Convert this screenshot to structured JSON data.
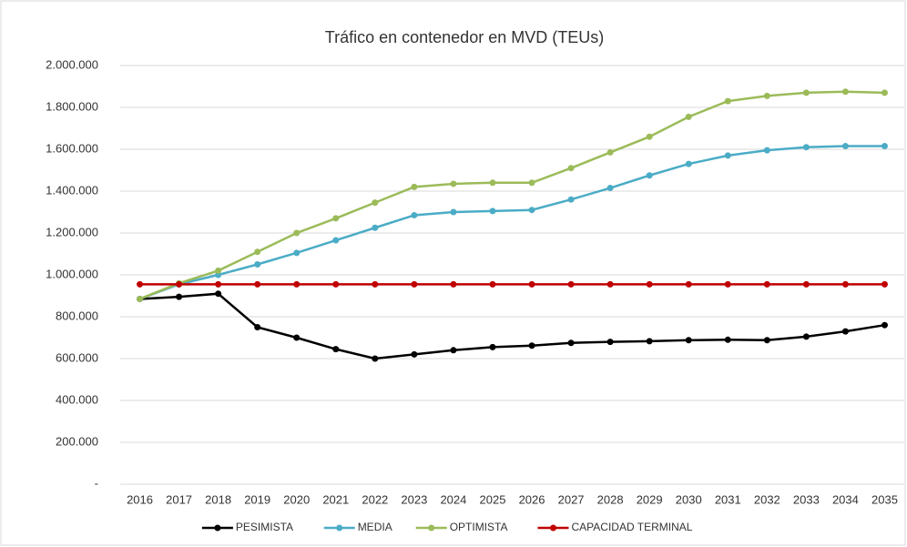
{
  "chart_data": {
    "type": "line",
    "title": "Tráfico en contenedor en MVD (TEUs)",
    "categories": [
      "2016",
      "2017",
      "2018",
      "2019",
      "2020",
      "2021",
      "2022",
      "2023",
      "2024",
      "2025",
      "2026",
      "2027",
      "2028",
      "2029",
      "2030",
      "2031",
      "2032",
      "2033",
      "2034",
      "2035"
    ],
    "series": [
      {
        "name": "PESIMISTA",
        "color": "#000000",
        "values": [
          885000,
          895000,
          910000,
          750000,
          700000,
          645000,
          600000,
          620000,
          640000,
          655000,
          662000,
          675000,
          680000,
          683000,
          688000,
          690000,
          688000,
          705000,
          730000,
          760000
        ]
      },
      {
        "name": "MEDIA",
        "color": "#4bacc6",
        "values": [
          885000,
          955000,
          1000000,
          1050000,
          1105000,
          1165000,
          1225000,
          1285000,
          1300000,
          1305000,
          1310000,
          1360000,
          1415000,
          1475000,
          1530000,
          1570000,
          1595000,
          1610000,
          1615000,
          1615000
        ]
      },
      {
        "name": "OPTIMISTA",
        "color": "#9bbb59",
        "values": [
          885000,
          960000,
          1020000,
          1110000,
          1200000,
          1270000,
          1345000,
          1420000,
          1435000,
          1440000,
          1440000,
          1510000,
          1585000,
          1660000,
          1755000,
          1830000,
          1855000,
          1870000,
          1875000,
          1870000
        ]
      },
      {
        "name": "CAPACIDAD TERMINAL",
        "color": "#c00000",
        "values": [
          955000,
          955000,
          955000,
          955000,
          955000,
          955000,
          955000,
          955000,
          955000,
          955000,
          955000,
          955000,
          955000,
          955000,
          955000,
          955000,
          955000,
          955000,
          955000,
          955000
        ]
      }
    ],
    "ylim": [
      0,
      2000000
    ],
    "yticks": [
      {
        "value": 0,
        "label": "-"
      },
      {
        "value": 200000,
        "label": "200.000"
      },
      {
        "value": 400000,
        "label": "400.000"
      },
      {
        "value": 600000,
        "label": "600.000"
      },
      {
        "value": 800000,
        "label": "800.000"
      },
      {
        "value": 1000000,
        "label": "1.000.000"
      },
      {
        "value": 1200000,
        "label": "1.200.000"
      },
      {
        "value": 1400000,
        "label": "1.400.000"
      },
      {
        "value": 1600000,
        "label": "1.600.000"
      },
      {
        "value": 1800000,
        "label": "1.800.000"
      },
      {
        "value": 2000000,
        "label": "2.000.000"
      }
    ],
    "grid": true,
    "legend": "bottom"
  }
}
